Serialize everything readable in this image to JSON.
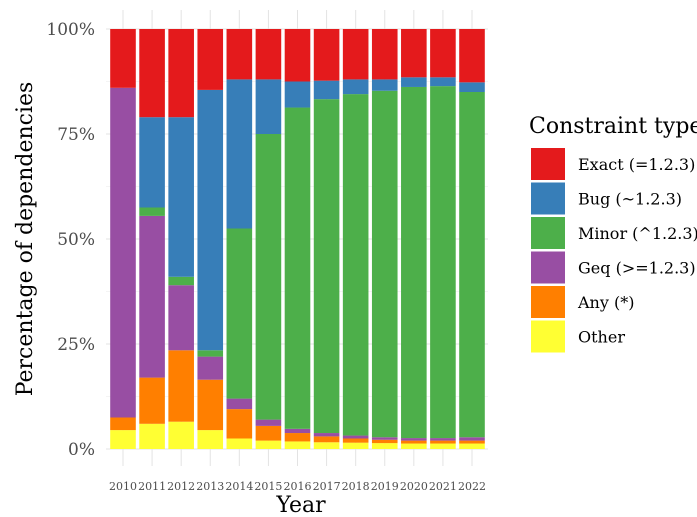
{
  "chart_data": {
    "type": "bar",
    "stacked": true,
    "xlabel": "Year",
    "ylabel": "Percentage of dependencies",
    "ylim": [
      0,
      100
    ],
    "y_ticks": [
      "0%",
      "25%",
      "50%",
      "75%",
      "100%"
    ],
    "y_tick_values": [
      0,
      25,
      50,
      75,
      100
    ],
    "categories": [
      "2010",
      "2011",
      "2012",
      "2013",
      "2014",
      "2015",
      "2016",
      "2017",
      "2018",
      "2019",
      "2020",
      "2021",
      "2022"
    ],
    "legend_title": "Constraint type",
    "legend_position": "right",
    "grid": true,
    "series": [
      {
        "name": "Other",
        "color": "#FFFF33",
        "values": [
          4.5,
          6.0,
          6.5,
          4.5,
          2.5,
          2.0,
          1.8,
          1.6,
          1.5,
          1.4,
          1.3,
          1.3,
          1.3
        ]
      },
      {
        "name": "Any (*)",
        "color": "#FF7F00",
        "values": [
          3.0,
          11.0,
          17.0,
          12.0,
          7.0,
          3.5,
          2.0,
          1.4,
          1.0,
          0.8,
          0.7,
          0.7,
          0.7
        ]
      },
      {
        "name": "Geq (>=1.2.3)",
        "color": "#984EA3",
        "values": [
          78.5,
          38.5,
          15.5,
          5.5,
          2.5,
          1.5,
          1.0,
          0.8,
          0.7,
          0.6,
          0.6,
          0.6,
          0.8
        ]
      },
      {
        "name": "Minor (^1.2.3)",
        "color": "#4DAF4A",
        "values": [
          0.0,
          2.0,
          2.0,
          1.5,
          40.5,
          68.0,
          76.5,
          79.5,
          81.3,
          82.5,
          83.6,
          83.8,
          82.2
        ]
      },
      {
        "name": "Bug (~1.2.3)",
        "color": "#377EB8",
        "values": [
          0.0,
          21.5,
          38.0,
          62.0,
          35.5,
          13.0,
          6.2,
          4.4,
          3.5,
          2.7,
          2.3,
          2.1,
          2.3
        ]
      },
      {
        "name": "Exact (=1.2.3)",
        "color": "#E41A1C",
        "values": [
          14.0,
          21.0,
          21.0,
          14.5,
          12.0,
          12.0,
          12.5,
          12.3,
          12.0,
          12.0,
          11.5,
          11.5,
          12.7
        ]
      }
    ],
    "legend_order": [
      "Exact (=1.2.3)",
      "Bug (~1.2.3)",
      "Minor (^1.2.3)",
      "Geq (>=1.2.3)",
      "Any (*)",
      "Other"
    ]
  }
}
